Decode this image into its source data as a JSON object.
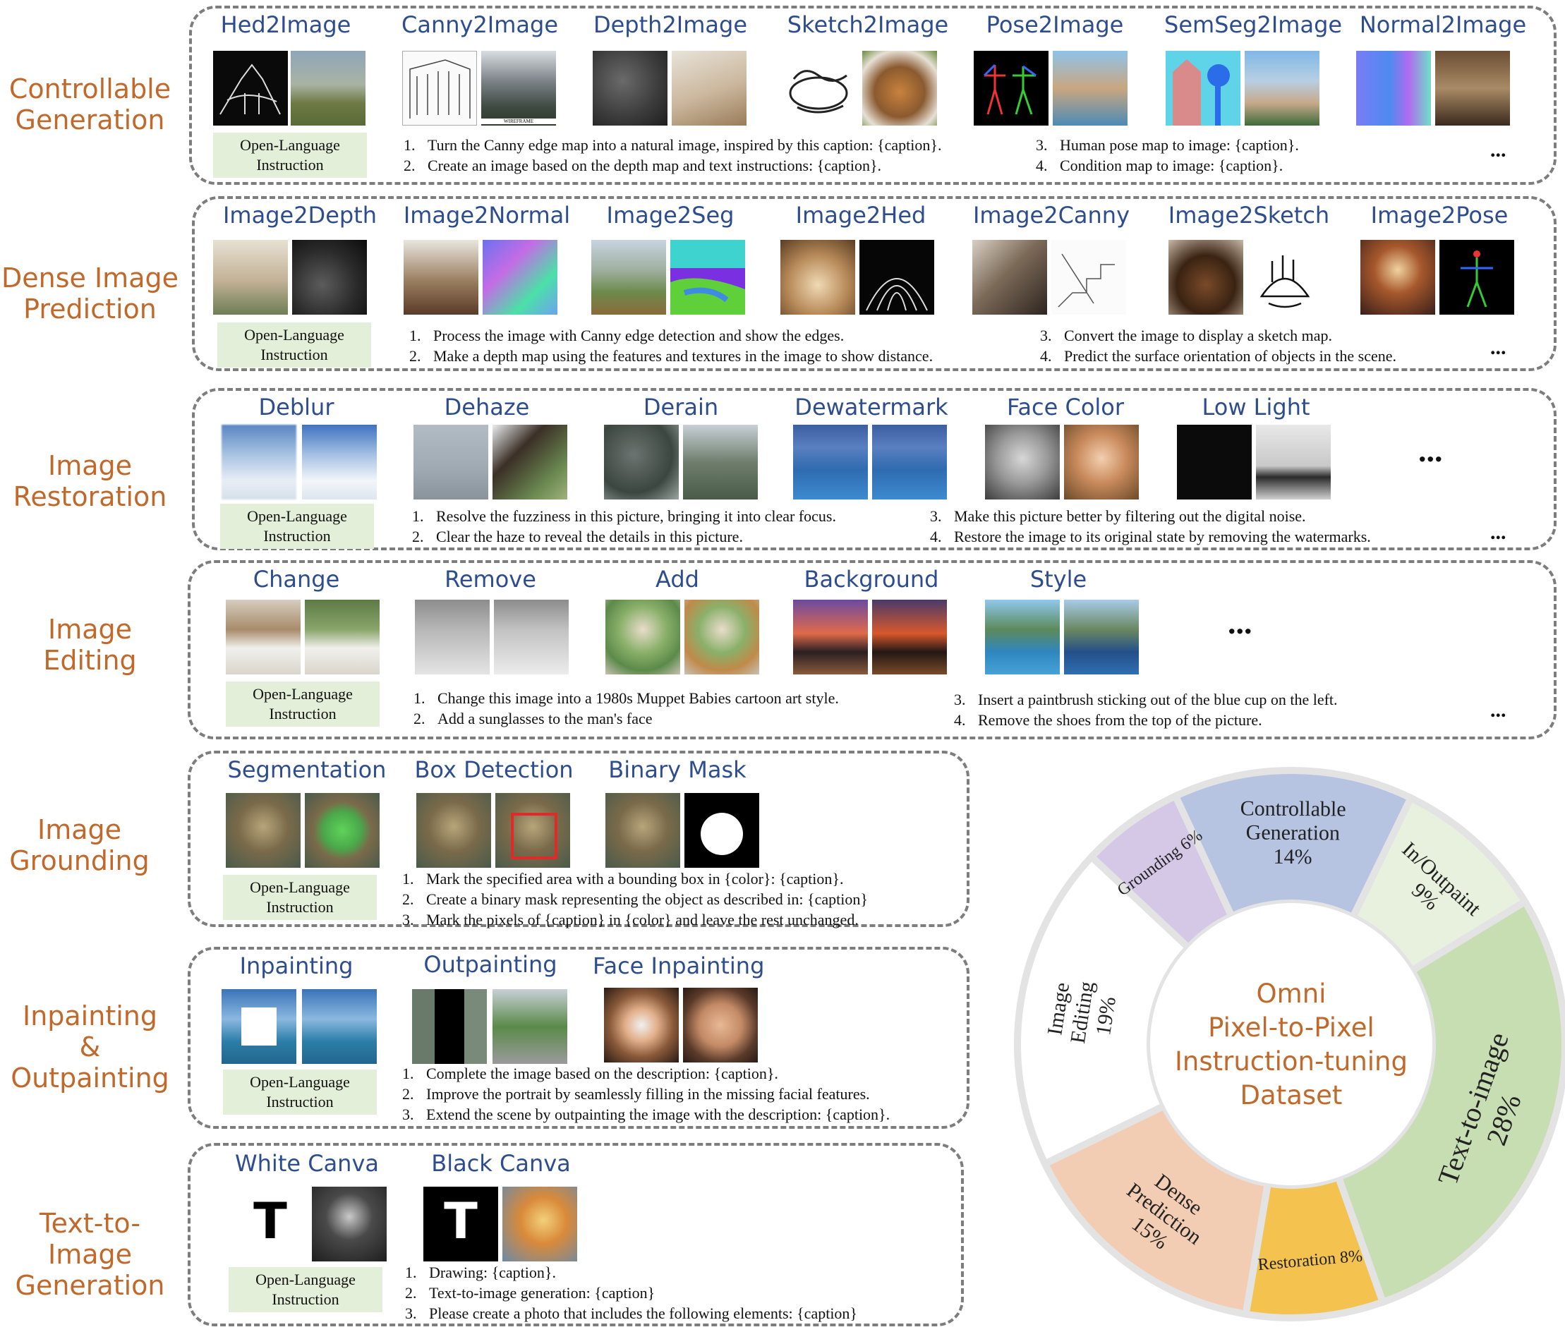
{
  "common": {
    "pill_line1": "Open-Language",
    "pill_line2": "Instruction",
    "more": "..."
  },
  "rows": [
    {
      "label": [
        "Controllable",
        "Generation"
      ],
      "tasks": [
        "Hed2Image",
        "Canny2Image",
        "Depth2Image",
        "Sketch2Image",
        "Pose2Image",
        "SemSeg2Image",
        "Normal2Image"
      ],
      "instructions": [
        {
          "n": "1.",
          "t": "Turn the Canny edge map into a natural image, inspired by this caption: {caption}."
        },
        {
          "n": "2.",
          "t": "Create an image based on the depth map and text instructions: {caption}."
        },
        {
          "n": "3.",
          "t": "Human pose map to image: {caption}."
        },
        {
          "n": "4.",
          "t": "Condition map to image: {caption}."
        }
      ],
      "wireframe_text": "WIREFRAME"
    },
    {
      "label": [
        "Dense Image",
        "Prediction"
      ],
      "tasks": [
        "Image2Depth",
        "Image2Normal",
        "Image2Seg",
        "Image2Hed",
        "Image2Canny",
        "Image2Sketch",
        "Image2Pose"
      ],
      "instructions": [
        {
          "n": "1.",
          "t": "Process the image with Canny edge detection and show the edges."
        },
        {
          "n": "2.",
          "t": "Make a depth map using the features and textures in the image to show distance."
        },
        {
          "n": "3.",
          "t": "Convert the image to display a sketch map."
        },
        {
          "n": "4.",
          "t": "Predict the surface orientation of objects in the scene."
        }
      ]
    },
    {
      "label": [
        "Image",
        "Restoration"
      ],
      "tasks": [
        "Deblur",
        "Dehaze",
        "Derain",
        "Dewatermark",
        "Face Color",
        "Low Light"
      ],
      "instructions": [
        {
          "n": "1.",
          "t": "Resolve the fuzziness in this picture, bringing it into clear focus."
        },
        {
          "n": "2.",
          "t": "Clear the haze to reveal the details in this picture."
        },
        {
          "n": "3.",
          "t": "Make this picture better by filtering out the digital noise."
        },
        {
          "n": "4.",
          "t": "Restore the image to its original state by removing the watermarks."
        }
      ]
    },
    {
      "label": [
        "Image",
        "Editing"
      ],
      "tasks": [
        "Change",
        "Remove",
        "Add",
        "Background",
        "Style"
      ],
      "instructions": [
        {
          "n": "1.",
          "t": "Change this image into a 1980s Muppet Babies cartoon art style."
        },
        {
          "n": "2.",
          "t": "Add a sunglasses to the man's face"
        },
        {
          "n": "3.",
          "t": "Insert a paintbrush sticking out of the blue cup on the left."
        },
        {
          "n": "4.",
          "t": "Remove the shoes from the top of the picture."
        }
      ]
    },
    {
      "label": [
        "Image",
        "Grounding"
      ],
      "tasks": [
        "Segmentation",
        "Box Detection",
        "Binary Mask"
      ],
      "instructions": [
        {
          "n": "1.",
          "t": "Mark the specified area with a bounding box in {color}: {caption}."
        },
        {
          "n": "2.",
          "t": "Create a binary mask representing the object as described in: {caption}"
        },
        {
          "n": "3.",
          "t": "Mark the pixels of {caption} in {color} and leave the rest unchanged."
        }
      ]
    },
    {
      "label": [
        "Inpainting",
        "&",
        "Outpainting"
      ],
      "tasks": [
        "Inpainting",
        "Outpainting",
        "Face Inpainting"
      ],
      "instructions": [
        {
          "n": "1.",
          "t": "Complete the image based on the description: {caption}."
        },
        {
          "n": "2.",
          "t": "Improve the portrait by seamlessly filling in the missing facial features."
        },
        {
          "n": "3.",
          "t": "Extend the scene by outpainting the image with the description: {caption}."
        }
      ]
    },
    {
      "label": [
        "Text-to-Image",
        "Generation"
      ],
      "tasks": [
        "White Canva",
        "Black Canva"
      ],
      "instructions": [
        {
          "n": "1.",
          "t": "Drawing: {caption}."
        },
        {
          "n": "2.",
          "t": "Text-to-image generation: {caption}"
        },
        {
          "n": "3.",
          "t": "Please create a photo that includes the following elements: {caption}"
        }
      ],
      "canvas_letter": "T"
    }
  ],
  "chart_data": {
    "type": "pie",
    "title": [
      "Omni",
      "Pixel-to-Pixel",
      "Instruction-tuning",
      "Dataset"
    ],
    "slices": [
      {
        "label": [
          "Controllable",
          "Generation",
          "14%"
        ],
        "value": 14,
        "color": "#b6c3e1"
      },
      {
        "label": [
          "In/Outpaint",
          "9%"
        ],
        "value": 9,
        "color": "#e8f0de"
      },
      {
        "label": [
          "Text-to-image",
          "28%"
        ],
        "value": 28,
        "color": "#c7ddb2"
      },
      {
        "label": [
          "Restoration 8%"
        ],
        "value": 8,
        "color": "#f3c24f"
      },
      {
        "label": [
          "Dense",
          "Prediction",
          "15%"
        ],
        "value": 15,
        "color": "#f3cdb3"
      },
      {
        "label": [
          "Image",
          "Editing",
          "19%"
        ],
        "value": 19,
        "color": "#ffffff"
      },
      {
        "label": [
          "Grounding 6%"
        ],
        "value": 6,
        "color": "#d5c8e6"
      }
    ]
  }
}
